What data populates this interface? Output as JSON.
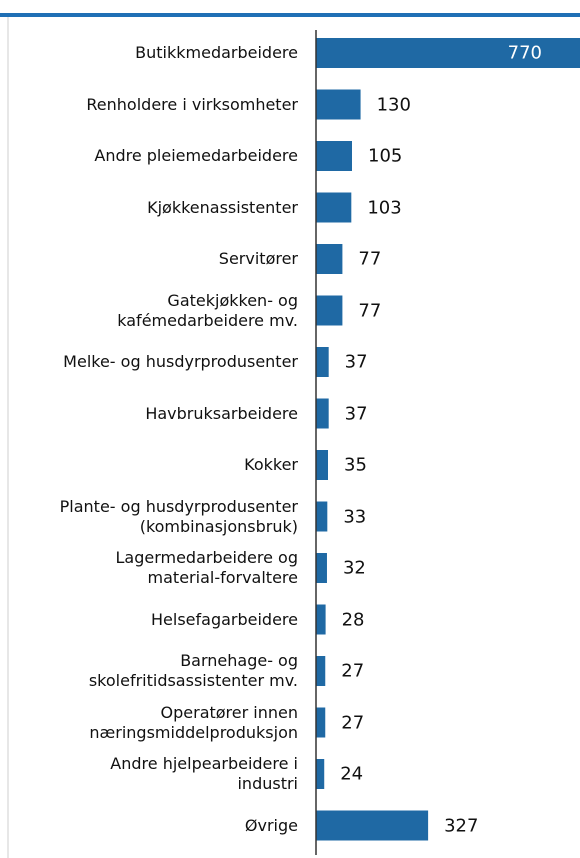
{
  "chart_data": {
    "type": "bar",
    "orientation": "horizontal",
    "categories": [
      "Butikkmedarbeidere",
      "Renholdere i virksomheter",
      "Andre pleiemedarbeidere",
      "Kjøkkenassistenter",
      "Servitører",
      "Gatekjøkken- og\nkafémedarbeidere mv.",
      "Melke- og husdyrprodusenter",
      "Havbruksarbeidere",
      "Kokker",
      "Plante- og husdyrprodusenter\n(kombinasjonsbruk)",
      "Lagermedarbeidere og\nmaterial-forvaltere",
      "Helsefagarbeidere",
      "Barnehage- og\nskolefritidsassistenter mv.",
      "Operatører innen\nnæringsmiddelproduksjon",
      "Andre hjelpearbeidere i\nindustri",
      "Øvrige"
    ],
    "values": [
      770,
      130,
      105,
      103,
      77,
      77,
      37,
      37,
      35,
      33,
      32,
      28,
      27,
      27,
      24,
      327
    ],
    "color": "#1f69a4",
    "xlim": [
      0,
      770
    ]
  }
}
